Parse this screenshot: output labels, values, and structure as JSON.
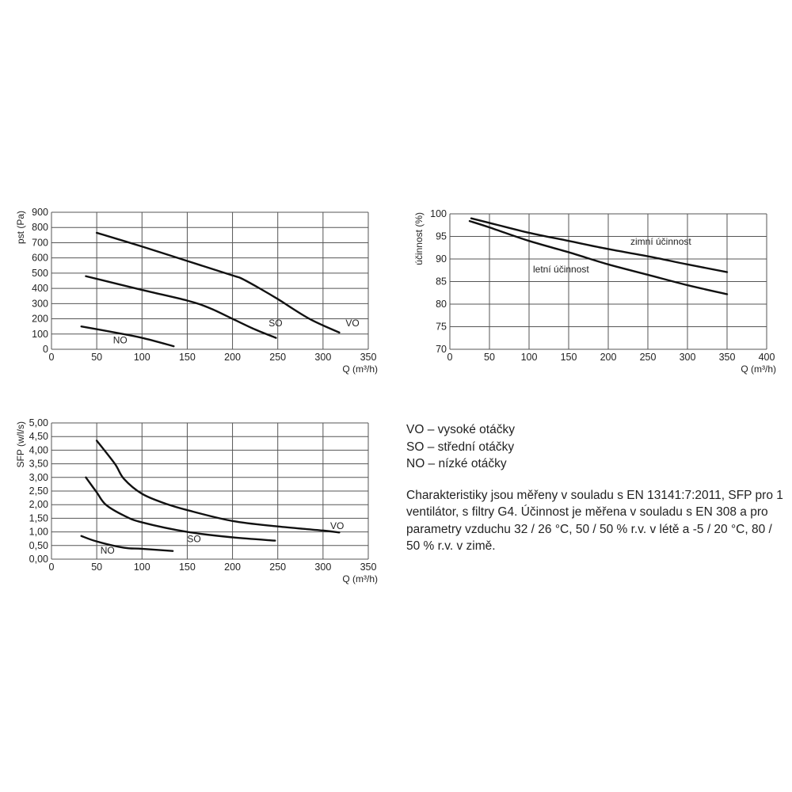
{
  "chart_data": [
    {
      "type": "line",
      "title": "",
      "xlabel": "Q (m³/h)",
      "ylabel": "pst (Pa)",
      "xlim": [
        0,
        350
      ],
      "ylim": [
        0,
        900
      ],
      "xticks": [
        "0",
        "50",
        "100",
        "150",
        "200",
        "250",
        "300",
        "350"
      ],
      "yticks": [
        "0",
        "100",
        "200",
        "300",
        "400",
        "500",
        "600",
        "700",
        "800",
        "900"
      ],
      "grid": true,
      "series": [
        {
          "name": "VO",
          "label_at": [
            325,
            150
          ],
          "points": [
            [
              50,
              765
            ],
            [
              100,
              675
            ],
            [
              150,
              580
            ],
            [
              200,
              485
            ],
            [
              210,
              465
            ],
            [
              230,
              400
            ],
            [
              250,
              330
            ],
            [
              285,
              200
            ],
            [
              318,
              110
            ]
          ]
        },
        {
          "name": "SO",
          "label_at": [
            240,
            150
          ],
          "points": [
            [
              38,
              480
            ],
            [
              100,
              390
            ],
            [
              150,
              320
            ],
            [
              175,
              270
            ],
            [
              200,
              200
            ],
            [
              225,
              130
            ],
            [
              248,
              75
            ]
          ]
        },
        {
          "name": "NO",
          "label_at": [
            68,
            40
          ],
          "points": [
            [
              33,
              150
            ],
            [
              70,
              110
            ],
            [
              100,
              75
            ],
            [
              135,
              20
            ]
          ]
        }
      ]
    },
    {
      "type": "line",
      "title": "",
      "xlabel": "Q (m³/h)",
      "ylabel": "účinnost (%)",
      "xlim": [
        0,
        400
      ],
      "ylim": [
        70,
        100
      ],
      "xticks": [
        "0",
        "50",
        "100",
        "150",
        "200",
        "250",
        "300",
        "350",
        "400"
      ],
      "yticks": [
        "70",
        "75",
        "80",
        "85",
        "90",
        "95",
        "100"
      ],
      "grid": true,
      "series": [
        {
          "name": "zimní účinnost",
          "label_at": [
            228,
            93.2
          ],
          "points": [
            [
              27,
              99
            ],
            [
              50,
              98
            ],
            [
              100,
              95.8
            ],
            [
              150,
              94
            ],
            [
              200,
              92.2
            ],
            [
              250,
              90.6
            ],
            [
              300,
              88.8
            ],
            [
              350,
              87.1
            ]
          ]
        },
        {
          "name": "letní účinnost",
          "label_at": [
            105,
            87
          ],
          "points": [
            [
              25,
              98.4
            ],
            [
              50,
              97
            ],
            [
              100,
              94
            ],
            [
              150,
              91.5
            ],
            [
              200,
              88.8
            ],
            [
              250,
              86.5
            ],
            [
              300,
              84.2
            ],
            [
              350,
              82.2
            ]
          ]
        }
      ]
    },
    {
      "type": "line",
      "title": "",
      "xlabel": "Q (m³/h)",
      "ylabel": "SFP (w/l/s)",
      "xlim": [
        0,
        350
      ],
      "ylim": [
        0,
        5
      ],
      "xticks": [
        "0",
        "50",
        "100",
        "150",
        "200",
        "250",
        "300",
        "350"
      ],
      "yticks": [
        "0,00",
        "0,50",
        "1,00",
        "1,50",
        "2,00",
        "2,50",
        "3,00",
        "3,50",
        "4,00",
        "4,50",
        "5,00"
      ],
      "grid": true,
      "series": [
        {
          "name": "VO",
          "label_at": [
            308,
            1.1
          ],
          "points": [
            [
              50,
              4.35
            ],
            [
              70,
              3.5
            ],
            [
              80,
              2.95
            ],
            [
              100,
              2.4
            ],
            [
              125,
              2.05
            ],
            [
              150,
              1.8
            ],
            [
              200,
              1.4
            ],
            [
              250,
              1.2
            ],
            [
              300,
              1.05
            ],
            [
              318,
              0.98
            ]
          ]
        },
        {
          "name": "SO",
          "label_at": [
            150,
            0.63
          ],
          "points": [
            [
              38,
              3.0
            ],
            [
              50,
              2.45
            ],
            [
              60,
              2.0
            ],
            [
              80,
              1.6
            ],
            [
              100,
              1.35
            ],
            [
              150,
              1.0
            ],
            [
              200,
              0.8
            ],
            [
              247,
              0.68
            ]
          ]
        },
        {
          "name": "NO",
          "label_at": [
            54,
            0.2
          ],
          "points": [
            [
              33,
              0.85
            ],
            [
              50,
              0.65
            ],
            [
              80,
              0.42
            ],
            [
              100,
              0.38
            ],
            [
              134,
              0.3
            ]
          ]
        }
      ]
    }
  ],
  "legend": [
    "VO – vysoké otáčky",
    "SO – střední otáčky",
    "NO – nízké otáčky"
  ],
  "note": "Charakteristiky jsou měřeny v souladu s EN 13141:7:2011, SFP pro 1 ventilátor, s filtry G4. Účinnost je měřena v souladu s EN 308 a pro parametry vzduchu 32 / 26 °C, 50 / 50 % r.v. v létě a -5 / 20 °C, 80 / 50 % r.v. v zimě."
}
